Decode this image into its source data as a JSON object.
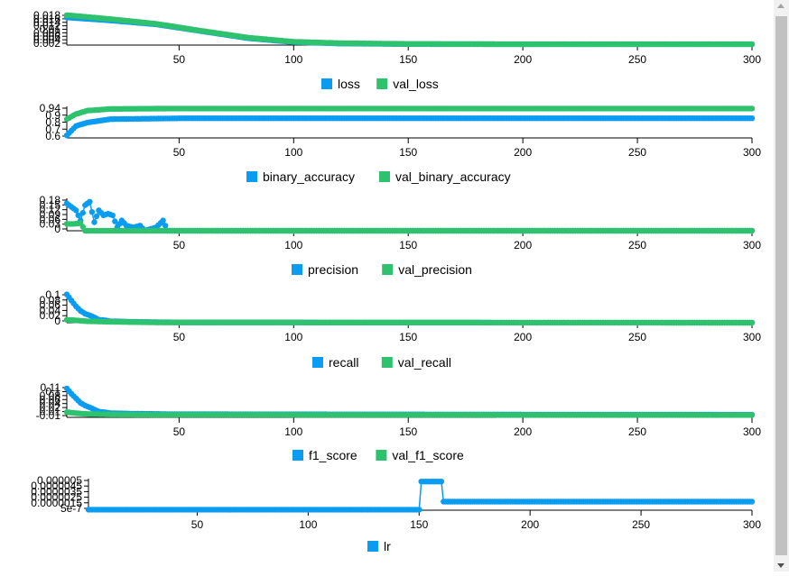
{
  "colors": {
    "train": "#0a9cf0",
    "val": "#2ec26e",
    "axis": "#000000"
  },
  "chart_data": [
    {
      "type": "line",
      "name": "loss",
      "x_ticks": [
        "50",
        "100",
        "150",
        "200",
        "250",
        "300"
      ],
      "y_ticks": [
        "0.002",
        "0.004",
        "0.006",
        "0.008",
        "0.01",
        "0.012",
        "0.014",
        "0.016",
        "0.018"
      ],
      "xlim": [
        1,
        300
      ],
      "ylim": [
        0.002,
        0.018
      ],
      "series": [
        {
          "name": "loss",
          "points": [
            [
              1,
              0.016
            ],
            [
              20,
              0.0145
            ],
            [
              40,
              0.0125
            ],
            [
              60,
              0.009
            ],
            [
              80,
              0.0055
            ],
            [
              100,
              0.0035
            ],
            [
              120,
              0.0028
            ],
            [
              150,
              0.0025
            ],
            [
              200,
              0.0024
            ],
            [
              250,
              0.0024
            ],
            [
              300,
              0.0024
            ]
          ]
        },
        {
          "name": "val_loss",
          "points": [
            [
              1,
              0.0172
            ],
            [
              20,
              0.0152
            ],
            [
              40,
              0.0128
            ],
            [
              60,
              0.0092
            ],
            [
              80,
              0.0058
            ],
            [
              100,
              0.0037
            ],
            [
              120,
              0.003
            ],
            [
              150,
              0.0026
            ],
            [
              200,
              0.0025
            ],
            [
              250,
              0.0025
            ],
            [
              300,
              0.0025
            ]
          ]
        }
      ]
    },
    {
      "type": "line",
      "name": "binary_accuracy",
      "x_ticks": [
        "50",
        "100",
        "150",
        "200",
        "250",
        "300"
      ],
      "y_ticks": [
        "0.6",
        "0.7",
        "0.8",
        "0.9",
        "0.94"
      ],
      "xlim": [
        1,
        300
      ],
      "ylim": [
        0.6,
        0.97
      ],
      "series": [
        {
          "name": "binary_accuracy",
          "points": [
            [
              1,
              0.63
            ],
            [
              5,
              0.74
            ],
            [
              10,
              0.78
            ],
            [
              20,
              0.82
            ],
            [
              50,
              0.83
            ],
            [
              100,
              0.83
            ],
            [
              150,
              0.83
            ],
            [
              200,
              0.83
            ],
            [
              250,
              0.83
            ],
            [
              300,
              0.83
            ]
          ]
        },
        {
          "name": "val_binary_accuracy",
          "points": [
            [
              1,
              0.82
            ],
            [
              5,
              0.88
            ],
            [
              10,
              0.92
            ],
            [
              20,
              0.94
            ],
            [
              50,
              0.945
            ],
            [
              100,
              0.945
            ],
            [
              150,
              0.945
            ],
            [
              200,
              0.945
            ],
            [
              250,
              0.945
            ],
            [
              300,
              0.945
            ]
          ]
        }
      ]
    },
    {
      "type": "line",
      "name": "precision",
      "x_ticks": [
        "50",
        "100",
        "150",
        "200",
        "250",
        "300"
      ],
      "y_ticks": [
        "0",
        "0.03",
        "0.06",
        "0.09",
        "0.12",
        "0.15",
        "0.18"
      ],
      "xlim": [
        1,
        300
      ],
      "ylim": [
        0,
        0.19
      ],
      "series": [
        {
          "name": "precision",
          "points": [
            [
              1,
              0.16
            ],
            [
              3,
              0.14
            ],
            [
              5,
              0.12
            ],
            [
              7,
              0.06
            ],
            [
              9,
              0.15
            ],
            [
              11,
              0.17
            ],
            [
              13,
              0.05
            ],
            [
              15,
              0.12
            ],
            [
              17,
              0.09
            ],
            [
              19,
              0.1
            ],
            [
              21,
              0.09
            ],
            [
              23,
              0.02
            ],
            [
              25,
              0.06
            ],
            [
              27,
              0.03
            ],
            [
              30,
              0.02
            ],
            [
              33,
              0.03
            ],
            [
              35,
              0.0
            ],
            [
              40,
              0.02
            ],
            [
              43,
              0.06
            ],
            [
              45,
              0.0
            ],
            [
              300,
              0.0
            ]
          ]
        },
        {
          "name": "val_precision",
          "points": [
            [
              1,
              0.04
            ],
            [
              4,
              0.04
            ],
            [
              7,
              0.045
            ],
            [
              9,
              0.0
            ],
            [
              300,
              0.0
            ]
          ]
        }
      ]
    },
    {
      "type": "line",
      "name": "recall",
      "x_ticks": [
        "50",
        "100",
        "150",
        "200",
        "250",
        "300"
      ],
      "y_ticks": [
        "0",
        "0.02",
        "0.04",
        "0.06",
        "0.08",
        "0.1"
      ],
      "xlim": [
        1,
        300
      ],
      "ylim": [
        0,
        0.1
      ],
      "series": [
        {
          "name": "recall",
          "points": [
            [
              1,
              0.095
            ],
            [
              3,
              0.075
            ],
            [
              5,
              0.055
            ],
            [
              7,
              0.04
            ],
            [
              9,
              0.03
            ],
            [
              11,
              0.025
            ],
            [
              13,
              0.018
            ],
            [
              15,
              0.01
            ],
            [
              18,
              0.008
            ],
            [
              20,
              0.005
            ],
            [
              25,
              0.004
            ],
            [
              30,
              0.003
            ],
            [
              40,
              0.002
            ],
            [
              50,
              0.001
            ],
            [
              300,
              0.0
            ]
          ]
        },
        {
          "name": "val_recall",
          "points": [
            [
              1,
              0.01
            ],
            [
              5,
              0.008
            ],
            [
              10,
              0.005
            ],
            [
              20,
              0.003
            ],
            [
              40,
              0.001
            ],
            [
              300,
              0.0
            ]
          ]
        }
      ]
    },
    {
      "type": "line",
      "name": "f1_score",
      "x_ticks": [
        "50",
        "100",
        "150",
        "200",
        "250",
        "300"
      ],
      "y_ticks": [
        "-0.01",
        "0.01",
        "0.02",
        "0.04",
        "0.06",
        "0.08",
        "0.1",
        "0.11"
      ],
      "xlim": [
        1,
        300
      ],
      "ylim": [
        -0.01,
        0.11
      ],
      "series": [
        {
          "name": "f1_score",
          "points": [
            [
              1,
              0.1
            ],
            [
              3,
              0.08
            ],
            [
              5,
              0.062
            ],
            [
              7,
              0.045
            ],
            [
              9,
              0.035
            ],
            [
              11,
              0.028
            ],
            [
              13,
              0.02
            ],
            [
              15,
              0.012
            ],
            [
              18,
              0.009
            ],
            [
              20,
              0.006
            ],
            [
              25,
              0.005
            ],
            [
              30,
              0.004
            ],
            [
              40,
              0.003
            ],
            [
              50,
              0.002
            ],
            [
              300,
              0.0
            ]
          ]
        },
        {
          "name": "val_f1_score",
          "points": [
            [
              1,
              0.01
            ],
            [
              5,
              0.006
            ],
            [
              10,
              0.003
            ],
            [
              20,
              0.001
            ],
            [
              40,
              0.0
            ],
            [
              300,
              -0.001
            ]
          ]
        }
      ]
    },
    {
      "type": "line",
      "name": "lr",
      "x_ticks": [
        "50",
        "100",
        "150",
        "200",
        "250",
        "300"
      ],
      "y_ticks": [
        "5e-7",
        "0.0000015",
        "0.0000025",
        "0.0000035",
        "0.0000045",
        "0.000005"
      ],
      "xlim": [
        1,
        300
      ],
      "ylim": [
        0,
        5.5e-06
      ],
      "series": [
        {
          "name": "lr",
          "points": [
            [
              1,
              1e-07
            ],
            [
              150,
              1e-07
            ],
            [
              151,
              5e-06
            ],
            [
              160,
              5e-06
            ],
            [
              161,
              1.5e-06
            ],
            [
              300,
              1.5e-06
            ]
          ]
        }
      ]
    }
  ],
  "legends": [
    {
      "train": "loss",
      "val": "val_loss"
    },
    {
      "train": "binary_accuracy",
      "val": "val_binary_accuracy"
    },
    {
      "train": "precision",
      "val": "val_precision"
    },
    {
      "train": "recall",
      "val": "val_recall"
    },
    {
      "train": "f1_score",
      "val": "val_f1_score"
    },
    {
      "train": "lr",
      "val": ""
    }
  ]
}
